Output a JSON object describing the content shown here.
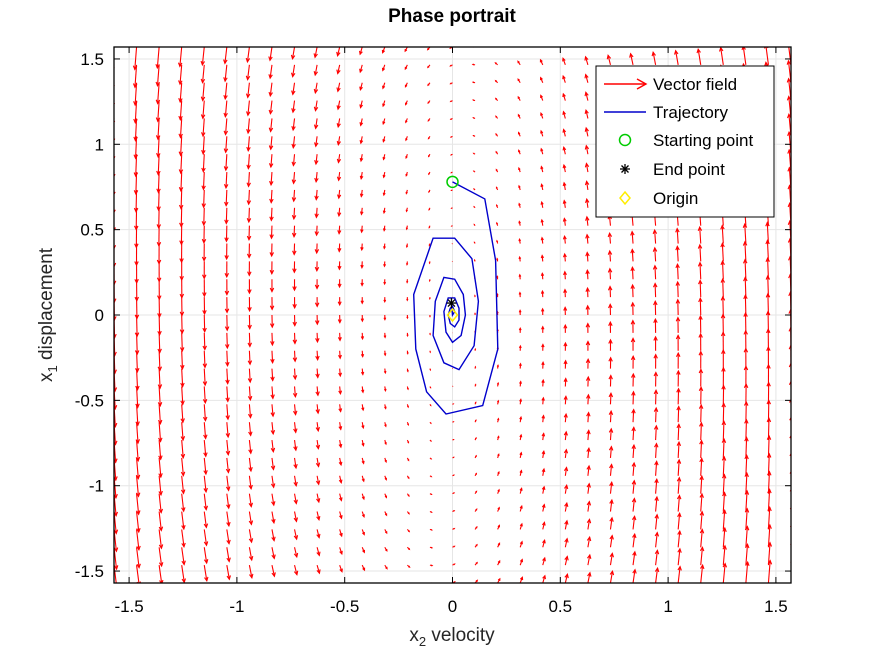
{
  "chart_data": {
    "type": "line",
    "title": "Phase portrait",
    "xlabel": {
      "base": "x",
      "sub": "2",
      "rest": " velocity"
    },
    "ylabel": {
      "base": "x",
      "sub": "1",
      "rest": " displacement"
    },
    "xlim": [
      -1.57,
      1.57
    ],
    "ylim": [
      -1.57,
      1.57
    ],
    "xticks": [
      -1.5,
      -1,
      -0.5,
      0,
      0.5,
      1,
      1.5
    ],
    "xtick_labels": [
      "-1.5",
      "-1",
      "-0.5",
      "0",
      "0.5",
      "1",
      "1.5"
    ],
    "yticks": [
      -1.5,
      -1,
      -0.5,
      0,
      0.5,
      1,
      1.5
    ],
    "ytick_labels": [
      "-1.5",
      "-1",
      "-0.5",
      "0",
      "0.5",
      "1",
      "1.5"
    ],
    "grid": true,
    "legend_position": "top-right",
    "colors": {
      "vector_field": "#ff0000",
      "trajectory": "#0000cc",
      "start": "#00cc00",
      "end": "#000000",
      "origin": "#ffee00",
      "grid": "#e6e6e6"
    },
    "vector_field": {
      "name": "Vector field",
      "grid_count": 31
    },
    "series": [
      {
        "name": "Trajectory",
        "points": [
          [
            0,
            0.78
          ],
          [
            0.15,
            0.68
          ],
          [
            0.2,
            0.32
          ],
          [
            0.21,
            -0.2
          ],
          [
            0.14,
            -0.53
          ],
          [
            -0.03,
            -0.58
          ],
          [
            -0.12,
            -0.45
          ],
          [
            -0.17,
            -0.2
          ],
          [
            -0.18,
            0.12
          ],
          [
            -0.09,
            0.45
          ],
          [
            0.01,
            0.45
          ],
          [
            0.09,
            0.33
          ],
          [
            0.12,
            0.08
          ],
          [
            0.1,
            -0.18
          ],
          [
            0.03,
            -0.32
          ],
          [
            -0.04,
            -0.28
          ],
          [
            -0.09,
            -0.12
          ],
          [
            -0.08,
            0.08
          ],
          [
            -0.04,
            0.22
          ],
          [
            0.01,
            0.21
          ],
          [
            0.05,
            0.12
          ],
          [
            0.06,
            0.0
          ],
          [
            0.04,
            -0.12
          ],
          [
            0.0,
            -0.16
          ],
          [
            -0.03,
            -0.1
          ],
          [
            -0.04,
            0.02
          ],
          [
            -0.02,
            0.1
          ],
          [
            0.01,
            0.1
          ],
          [
            0.03,
            0.04
          ],
          [
            0.03,
            -0.03
          ],
          [
            0.01,
            -0.07
          ],
          [
            -0.01,
            -0.05
          ],
          [
            -0.02,
            0.0
          ],
          [
            -0.01,
            0.04
          ],
          [
            0.0,
            0.05
          ],
          [
            0.01,
            0.02
          ],
          [
            0.0,
            0.0
          ],
          [
            -0.005,
            0.07
          ]
        ]
      }
    ],
    "start_point": {
      "name": "Starting point",
      "x": 0,
      "y": 0.78
    },
    "end_point": {
      "name": "End point",
      "x": -0.005,
      "y": 0.07
    },
    "origin": {
      "name": "Origin",
      "x": 0,
      "y": 0
    }
  }
}
